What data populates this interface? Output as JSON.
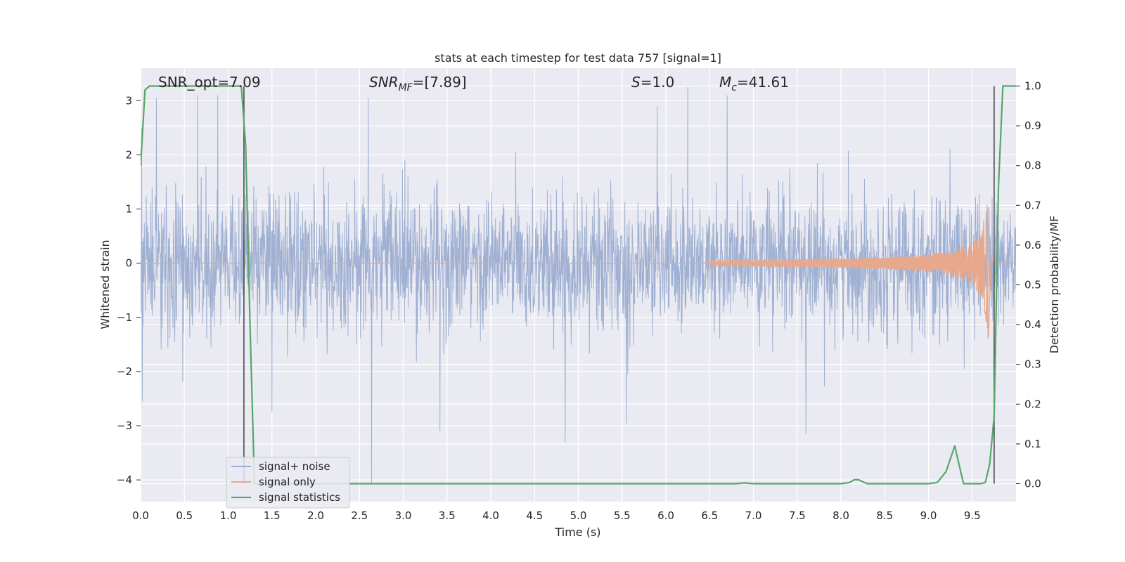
{
  "chart_data": {
    "type": "line",
    "title": "stats at each timestep for test data 757 [signal=1]",
    "xlabel": "Time (s)",
    "ylabel": "Whitened strain",
    "y2label": "Detection probability/MF",
    "xlim": [
      0.0,
      10.0
    ],
    "ylim": [
      -4.4,
      3.6
    ],
    "y2lim": [
      -0.045,
      1.045
    ],
    "x_ticks": [
      "0.0",
      "0.5",
      "1.0",
      "1.5",
      "2.0",
      "2.5",
      "3.0",
      "3.5",
      "4.0",
      "4.5",
      "5.0",
      "5.5",
      "6.0",
      "6.5",
      "7.0",
      "7.5",
      "8.0",
      "8.5",
      "9.0",
      "9.5"
    ],
    "x_tick_values": [
      0.0,
      0.5,
      1.0,
      1.5,
      2.0,
      2.5,
      3.0,
      3.5,
      4.0,
      4.5,
      5.0,
      5.5,
      6.0,
      6.5,
      7.0,
      7.5,
      8.0,
      8.5,
      9.0,
      9.5
    ],
    "y_ticks": [
      "3",
      "2",
      "1",
      "0",
      "−1",
      "−2",
      "−3",
      "−4"
    ],
    "y_tick_values": [
      3,
      2,
      1,
      0,
      -1,
      -2,
      -3,
      -4
    ],
    "y2_ticks": [
      "1.0",
      "0.9",
      "0.8",
      "0.7",
      "0.6",
      "0.5",
      "0.4",
      "0.3",
      "0.2",
      "0.1",
      "0.0"
    ],
    "y2_tick_values": [
      1.0,
      0.9,
      0.8,
      0.7,
      0.6,
      0.5,
      0.4,
      0.3,
      0.2,
      0.1,
      0.0
    ],
    "grid": true,
    "legend_position": "lower-left",
    "annotations": {
      "snr_opt": "SNR_opt=7.09",
      "snr_mf_sym": "SNR",
      "snr_mf_sub": "MF",
      "snr_mf_val": "=[7.89]",
      "s_sym": "S",
      "s_val": "=1.0",
      "mc_sym": "M",
      "mc_sub": "c",
      "mc_val": "=41.61"
    },
    "vlines": [
      1.18,
      9.75
    ],
    "series": [
      {
        "name": "signal+ noise",
        "color": "#9badd0",
        "kind": "noise",
        "amplitude_envelope": [
          1.8,
          1.8
        ],
        "peak_spikes": [
          [
            0.01,
            2.5
          ],
          [
            0.18,
            3.05
          ],
          [
            0.65,
            3.1
          ],
          [
            0.88,
            3.1
          ],
          [
            2.6,
            3.05
          ],
          [
            5.9,
            2.9
          ],
          [
            6.25,
            3.25
          ],
          [
            6.7,
            3.1
          ],
          [
            2.64,
            -4.05
          ],
          [
            0.02,
            -2.55
          ],
          [
            1.5,
            -2.75
          ],
          [
            3.42,
            -3.1
          ],
          [
            4.85,
            -3.3
          ],
          [
            7.6,
            -3.15
          ],
          [
            5.55,
            -2.95
          ]
        ]
      },
      {
        "name": "signal only",
        "color": "#e8a88c",
        "kind": "chirp",
        "start": 6.5,
        "merger": 9.68,
        "peak_amplitude": 1.5
      },
      {
        "name": "signal statistics",
        "color": "#55a868",
        "kind": "probability",
        "x": [
          0.0,
          0.05,
          0.1,
          0.2,
          0.5,
          1.0,
          1.15,
          1.2,
          1.25,
          1.3,
          1.5,
          2.0,
          3.0,
          4.0,
          5.0,
          6.0,
          6.8,
          6.9,
          7.0,
          8.0,
          8.1,
          8.15,
          8.2,
          8.25,
          8.3,
          8.5,
          9.0,
          9.1,
          9.2,
          9.3,
          9.4,
          9.5,
          9.6,
          9.65,
          9.7,
          9.75,
          9.8,
          9.85,
          9.9,
          10.0
        ],
        "y": [
          0.8,
          0.99,
          1.0,
          1.0,
          1.0,
          1.0,
          1.0,
          0.85,
          0.4,
          0.0,
          0.0,
          0.0,
          0.0,
          0.0,
          0.0,
          0.0,
          0.0,
          0.002,
          0.0,
          0.0,
          0.003,
          0.01,
          0.01,
          0.005,
          0.0,
          0.0,
          0.0,
          0.003,
          0.03,
          0.095,
          0.0,
          0.0,
          0.0,
          0.003,
          0.05,
          0.17,
          0.75,
          1.0,
          1.0,
          1.0
        ]
      }
    ],
    "vline_color": "#4c4c4c"
  }
}
